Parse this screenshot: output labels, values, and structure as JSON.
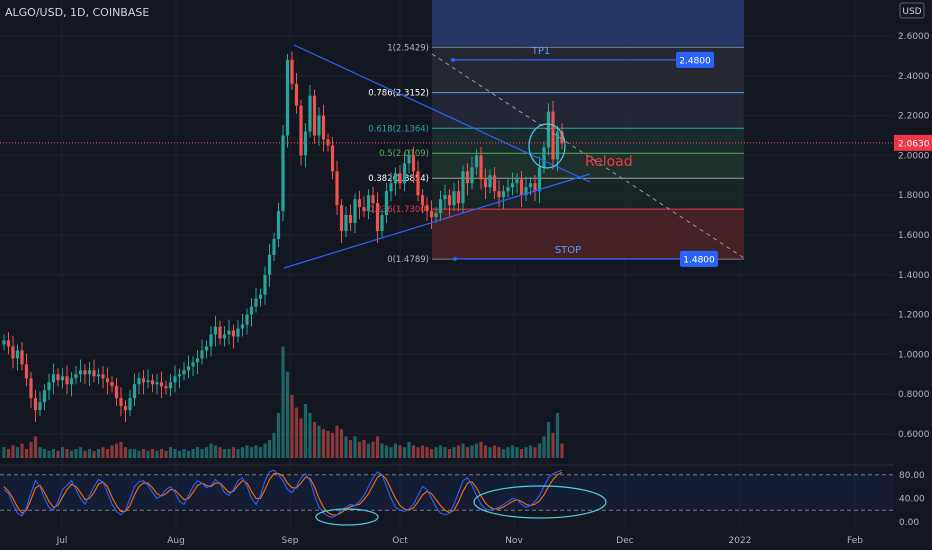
{
  "header": {
    "symbol_line": "ALGO/USD, 1D, COINBASE",
    "currency_badge": "USD"
  },
  "colors": {
    "background": "#131722",
    "up": "#26a69a",
    "down": "#ef5350",
    "grid": "#1e2230",
    "trendline": "#2962ff",
    "osc_k": "#2962ff",
    "osc_d": "#ff6d00",
    "circle": "#4dd0e1",
    "price_line": "#ef5350",
    "text": "#b2b5be",
    "tp_box": "#2a3a70",
    "stop_box": "#4a2326"
  },
  "chart_data": {
    "type": "candlestick",
    "price_axis": {
      "ticks": [
        0.6,
        0.8,
        1.0,
        1.2,
        1.4,
        1.6,
        1.8,
        2.0,
        2.2,
        2.4,
        2.6
      ],
      "tick_labels": [
        "0.6000",
        "0.8000",
        "1.0000",
        "1.2000",
        "1.4000",
        "1.6000",
        "1.8000",
        "2.0000",
        "2.2000",
        "2.4000",
        "2.6000"
      ]
    },
    "time_axis": {
      "labels": [
        "Jul",
        "Aug",
        "Sep",
        "Oct",
        "Nov",
        "Dec",
        "2022",
        "Feb"
      ]
    },
    "last_price": {
      "value": 2.063,
      "label": "2.0630"
    },
    "closes": [
      1.07,
      1.04,
      0.98,
      1.02,
      0.95,
      0.88,
      0.78,
      0.72,
      0.76,
      0.82,
      0.86,
      0.9,
      0.87,
      0.89,
      0.85,
      0.88,
      0.9,
      0.92,
      0.9,
      0.92,
      0.89,
      0.9,
      0.88,
      0.86,
      0.84,
      0.78,
      0.74,
      0.72,
      0.78,
      0.85,
      0.88,
      0.86,
      0.87,
      0.85,
      0.86,
      0.84,
      0.83,
      0.86,
      0.89,
      0.9,
      0.92,
      0.94,
      0.96,
      0.98,
      1.02,
      1.04,
      1.1,
      1.14,
      1.08,
      1.1,
      1.12,
      1.09,
      1.13,
      1.15,
      1.2,
      1.24,
      1.28,
      1.3,
      1.4,
      1.5,
      1.58,
      1.72,
      2.1,
      2.48,
      2.36,
      2.25,
      2.0,
      2.12,
      2.3,
      2.1,
      2.2,
      2.08,
      2.05,
      1.92,
      1.75,
      1.62,
      1.7,
      1.66,
      1.78,
      1.74,
      1.72,
      1.8,
      1.76,
      1.62,
      1.7,
      1.82,
      1.86,
      1.91,
      1.86,
      1.96,
      2.0,
      1.92,
      1.8,
      1.75,
      1.72,
      1.69,
      1.71,
      1.78,
      1.8,
      1.75,
      1.82,
      1.76,
      1.92,
      1.86,
      1.94,
      2.0,
      1.88,
      1.84,
      1.9,
      1.82,
      1.79,
      1.82,
      1.84,
      1.86,
      1.88,
      1.8,
      1.84,
      1.86,
      1.82,
      1.94,
      2.04,
      2.22,
      1.98,
      2.12,
      2.06
    ],
    "volumes": [
      0.06,
      0.05,
      0.07,
      0.06,
      0.08,
      0.05,
      0.09,
      0.12,
      0.06,
      0.05,
      0.04,
      0.05,
      0.04,
      0.06,
      0.05,
      0.04,
      0.05,
      0.06,
      0.04,
      0.05,
      0.04,
      0.05,
      0.06,
      0.05,
      0.07,
      0.08,
      0.09,
      0.06,
      0.05,
      0.05,
      0.04,
      0.05,
      0.04,
      0.05,
      0.04,
      0.05,
      0.04,
      0.06,
      0.05,
      0.04,
      0.05,
      0.04,
      0.05,
      0.06,
      0.05,
      0.06,
      0.08,
      0.07,
      0.06,
      0.05,
      0.05,
      0.06,
      0.05,
      0.06,
      0.07,
      0.06,
      0.07,
      0.06,
      0.08,
      0.1,
      0.14,
      0.25,
      0.62,
      0.48,
      0.35,
      0.28,
      0.22,
      0.3,
      0.25,
      0.2,
      0.18,
      0.16,
      0.15,
      0.14,
      0.18,
      0.16,
      0.12,
      0.1,
      0.12,
      0.09,
      0.1,
      0.08,
      0.09,
      0.12,
      0.08,
      0.07,
      0.06,
      0.08,
      0.07,
      0.06,
      0.09,
      0.07,
      0.06,
      0.07,
      0.06,
      0.05,
      0.06,
      0.07,
      0.06,
      0.05,
      0.06,
      0.07,
      0.08,
      0.06,
      0.07,
      0.08,
      0.09,
      0.07,
      0.06,
      0.07,
      0.06,
      0.05,
      0.06,
      0.07,
      0.06,
      0.05,
      0.06,
      0.07,
      0.06,
      0.08,
      0.12,
      0.2,
      0.14,
      0.25,
      0.08
    ],
    "oscillator": {
      "ticks": [
        0,
        40,
        80
      ],
      "tick_labels": [
        "0.00",
        "40.00",
        "80.00"
      ],
      "k": [
        55,
        48,
        30,
        15,
        10,
        25,
        50,
        70,
        60,
        40,
        25,
        20,
        35,
        55,
        62,
        70,
        55,
        40,
        30,
        45,
        60,
        72,
        68,
        50,
        30,
        18,
        12,
        20,
        40,
        60,
        68,
        70,
        62,
        50,
        40,
        45,
        55,
        60,
        50,
        35,
        30,
        45,
        60,
        70,
        66,
        58,
        62,
        72,
        65,
        50,
        45,
        55,
        70,
        75,
        60,
        40,
        30,
        45,
        70,
        85,
        88,
        80,
        70,
        55,
        50,
        60,
        75,
        82,
        70,
        45,
        25,
        15,
        10,
        8,
        12,
        20,
        25,
        30,
        28,
        35,
        45,
        60,
        75,
        85,
        80,
        60,
        40,
        25,
        20,
        18,
        22,
        30,
        45,
        60,
        55,
        40,
        25,
        15,
        12,
        15,
        30,
        50,
        70,
        75,
        62,
        45,
        30,
        22,
        20,
        22,
        25,
        30,
        35,
        40,
        38,
        30,
        25,
        28,
        35,
        45,
        60,
        75,
        82,
        85,
        88
      ],
      "d": [
        60,
        52,
        40,
        25,
        15,
        20,
        38,
        58,
        62,
        50,
        35,
        25,
        28,
        42,
        55,
        64,
        60,
        50,
        38,
        40,
        50,
        64,
        68,
        60,
        42,
        28,
        18,
        18,
        28,
        46,
        60,
        66,
        66,
        58,
        48,
        44,
        48,
        55,
        54,
        46,
        38,
        40,
        50,
        62,
        66,
        62,
        60,
        66,
        66,
        58,
        50,
        52,
        62,
        70,
        66,
        52,
        40,
        40,
        55,
        72,
        82,
        82,
        78,
        66,
        58,
        58,
        66,
        76,
        74,
        60,
        40,
        25,
        16,
        12,
        12,
        16,
        22,
        26,
        28,
        30,
        38,
        48,
        62,
        76,
        80,
        72,
        56,
        40,
        28,
        22,
        20,
        24,
        34,
        46,
        52,
        48,
        38,
        28,
        20,
        16,
        20,
        34,
        52,
        66,
        68,
        58,
        44,
        32,
        25,
        22,
        22,
        26,
        30,
        35,
        38,
        35,
        30,
        28,
        30,
        36,
        46,
        60,
        72,
        80,
        84
      ]
    },
    "fibonacci": [
      {
        "ratio": 1,
        "label": "1(2.5429)",
        "value": 2.5429
      },
      {
        "ratio": 0.786,
        "label": "0.786(2.3152)",
        "value": 2.3152
      },
      {
        "ratio": 0.618,
        "label": "0.618(2.1364)",
        "value": 2.1364
      },
      {
        "ratio": 0.5,
        "label": "0.5(2.0109)",
        "value": 2.0109
      },
      {
        "ratio": 0.382,
        "label": "0.382(1.8854)",
        "value": 1.8854
      },
      {
        "ratio": 0.236,
        "label": "0.236(1.7300)",
        "value": 1.73
      },
      {
        "ratio": 0,
        "label": "0(1.4789)",
        "value": 1.4789
      }
    ],
    "tp": {
      "label": "TP1",
      "value": 2.48,
      "value_label": "2.4800"
    },
    "stop": {
      "label": "STOP",
      "value": 1.48,
      "value_label": "1.4800"
    },
    "annotation": "Reload"
  }
}
